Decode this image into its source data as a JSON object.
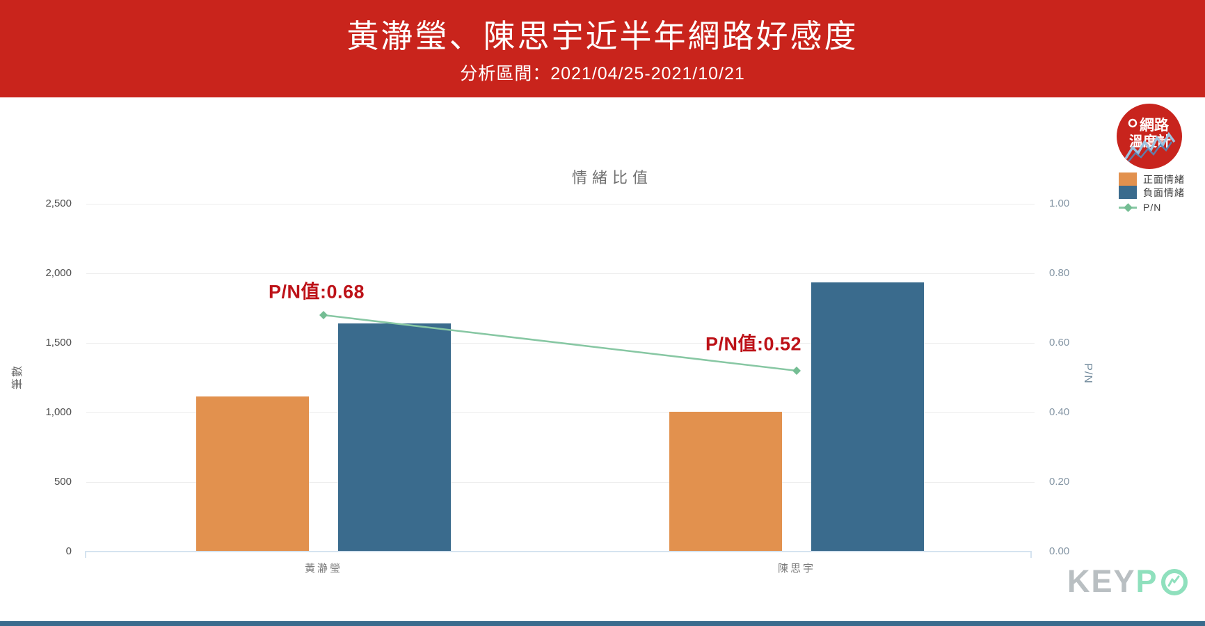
{
  "header": {
    "title": "黃瀞瑩、陳思宇近半年網路好感度",
    "subtitle": "分析區間：2021/04/25-2021/10/21",
    "bg_color": "#c9241c"
  },
  "brand": {
    "logo_line1": "網路",
    "logo_line2": "溫度計",
    "watermark_gray": "KEY",
    "watermark_green": "P"
  },
  "chart_data": {
    "type": "bar",
    "title": "情緒比值",
    "categories": [
      "黃瀞瑩",
      "陳思宇"
    ],
    "series": [
      {
        "name": "正面情緒",
        "type": "bar",
        "axis": "left",
        "color": "#e2914e",
        "values": [
          1115,
          1005
        ]
      },
      {
        "name": "負面情緒",
        "type": "bar",
        "axis": "left",
        "color": "#3a6b8d",
        "values": [
          1640,
          1935
        ]
      },
      {
        "name": "P/N",
        "type": "line",
        "axis": "right",
        "color": "#87c7a3",
        "marker_color": "#74bd93",
        "values": [
          0.68,
          0.52
        ]
      }
    ],
    "annotations": [
      {
        "text": "P/N值:0.68",
        "category": "黃瀞瑩",
        "value": 0.68
      },
      {
        "text": "P/N值:0.52",
        "category": "陳思宇",
        "value": 0.52
      }
    ],
    "annotation_color": "#bd1218",
    "left_axis": {
      "title": "筆數",
      "range": [
        0,
        2500
      ],
      "ticks": [
        {
          "label": "0",
          "value": 0
        },
        {
          "label": "500",
          "value": 500
        },
        {
          "label": "1,000",
          "value": 1000
        },
        {
          "label": "1,500",
          "value": 1500
        },
        {
          "label": "2,000",
          "value": 2000
        },
        {
          "label": "2,500",
          "value": 2500
        }
      ]
    },
    "right_axis": {
      "title": "P/N",
      "range": [
        0,
        1
      ],
      "ticks": [
        {
          "label": "0.00",
          "value": 0
        },
        {
          "label": "0.20",
          "value": 0.2
        },
        {
          "label": "0.40",
          "value": 0.4
        },
        {
          "label": "0.60",
          "value": 0.6
        },
        {
          "label": "0.80",
          "value": 0.8
        },
        {
          "label": "1.00",
          "value": 1
        }
      ]
    },
    "legend_position": "top-right",
    "grid": true
  }
}
